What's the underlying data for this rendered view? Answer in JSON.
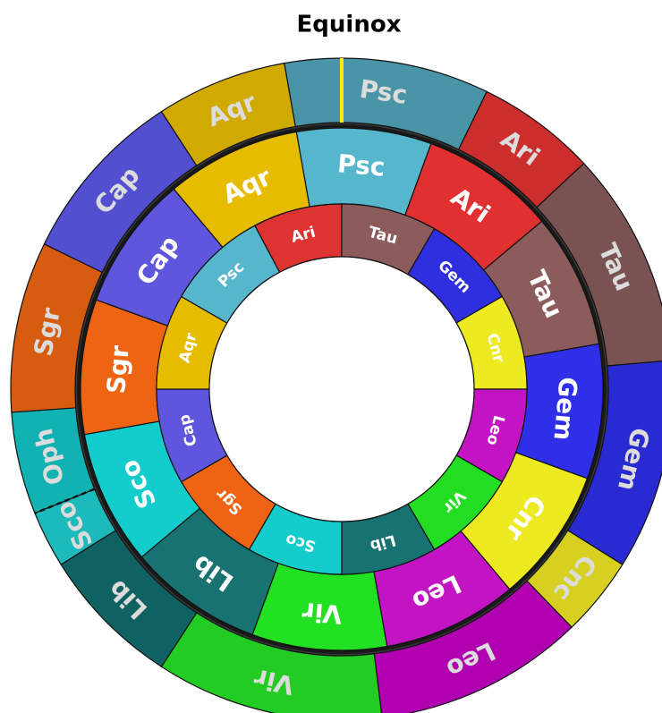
{
  "title": "Equinox",
  "rings": [
    {
      "segments": [
        {
          "label": "Ari",
          "color": "#dd3333"
        },
        {
          "label": "Tau",
          "color": "#8c5c5c"
        },
        {
          "label": "Gem",
          "color": "#2f2fe0"
        },
        {
          "label": "Cnr",
          "color": "#eeea22"
        },
        {
          "label": "Leo",
          "color": "#c214c2"
        },
        {
          "label": "Vir",
          "color": "#22dd22"
        },
        {
          "label": "Lib",
          "color": "#187272"
        },
        {
          "label": "Sco",
          "color": "#14cccc"
        },
        {
          "label": "Sgr",
          "color": "#ee6412"
        },
        {
          "label": "Cap",
          "color": "#5e56dc"
        },
        {
          "label": "Aqr",
          "color": "#e6bc00"
        },
        {
          "label": "Psc",
          "color": "#56b6cc"
        }
      ]
    },
    {
      "segments": [
        {
          "label": "Psc",
          "color": "#56b6cc"
        },
        {
          "label": "Ari",
          "color": "#e03030"
        },
        {
          "label": "Tau",
          "color": "#8c5c5c"
        },
        {
          "label": "Gem",
          "color": "#2f2fe8"
        },
        {
          "label": "Cnr",
          "color": "#eeea22"
        },
        {
          "label": "Leo",
          "color": "#c214c2"
        },
        {
          "label": "Vir",
          "color": "#22e022"
        },
        {
          "label": "Lib",
          "color": "#187272"
        },
        {
          "label": "Sco",
          "color": "#14cccc"
        },
        {
          "label": "Sgr",
          "color": "#ee6412"
        },
        {
          "label": "Cap",
          "color": "#5e56dc"
        },
        {
          "label": "Aqr",
          "color": "#e6bc00"
        }
      ]
    },
    {
      "segments": [
        {
          "label": "Psc",
          "color": "#4a94a8"
        },
        {
          "label": "Ari",
          "color": "#cc2e2e"
        },
        {
          "label": "Tau",
          "color": "#7a5252"
        },
        {
          "label": "Gem",
          "color": "#2a2ad2"
        },
        {
          "label": "Cnc",
          "color": "#d8d020"
        },
        {
          "label": "Leo",
          "color": "#b000b0"
        },
        {
          "label": "Vir",
          "color": "#22cc22"
        },
        {
          "label": "Lib",
          "color": "#106262"
        },
        {
          "label": "Sco",
          "color": "#1cbaba"
        },
        {
          "label": "Oph",
          "color": "#12b2b2"
        },
        {
          "label": "Sgr",
          "color": "#d85c10"
        },
        {
          "label": "Cap",
          "color": "#5250d0"
        },
        {
          "label": "Aqr",
          "color": "#d0aa00"
        }
      ]
    }
  ]
}
